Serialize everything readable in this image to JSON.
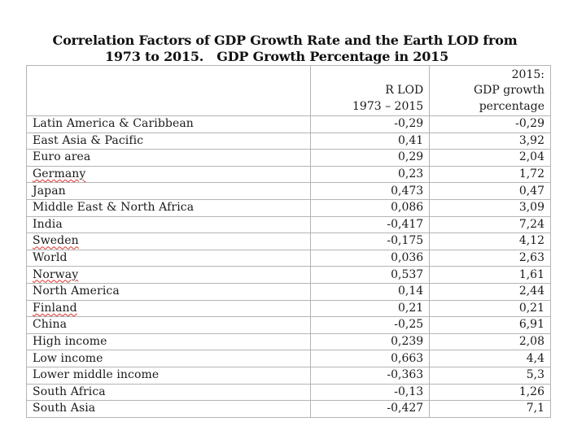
{
  "title": {
    "line1": "Correlation Factors of GDP Growth Rate and the Earth LOD from",
    "line2": "1973 to 2015.   GDP Growth Percentage in 2015"
  },
  "table": {
    "header": {
      "name": "",
      "rlod": [
        "R LOD",
        "1973 – 2015"
      ],
      "gdp": [
        "2015:",
        "GDP growth",
        "percentage"
      ]
    },
    "rows": [
      {
        "name": "Latin America & Caribbean",
        "rlod": "-0,29",
        "gdp": "-0,29",
        "spellcheck": false
      },
      {
        "name": "East Asia & Pacific",
        "rlod": "0,41",
        "gdp": "3,92",
        "spellcheck": false
      },
      {
        "name": "Euro area",
        "rlod": "0,29",
        "gdp": "2,04",
        "spellcheck": false
      },
      {
        "name": "Germany",
        "rlod": "0,23",
        "gdp": "1,72",
        "spellcheck": true
      },
      {
        "name": "Japan",
        "rlod": "0,473",
        "gdp": "0,47",
        "spellcheck": false
      },
      {
        "name": "Middle East & North Africa",
        "rlod": "0,086",
        "gdp": "3,09",
        "spellcheck": false
      },
      {
        "name": "India",
        "rlod": "-0,417",
        "gdp": "7,24",
        "spellcheck": false
      },
      {
        "name": "Sweden",
        "rlod": "-0,175",
        "gdp": "4,12",
        "spellcheck": true
      },
      {
        "name": "World",
        "rlod": "0,036",
        "gdp": "2,63",
        "spellcheck": false
      },
      {
        "name": "Norway",
        "rlod": "0,537",
        "gdp": "1,61",
        "spellcheck": true
      },
      {
        "name": "North America",
        "rlod": "0,14",
        "gdp": "2,44",
        "spellcheck": false
      },
      {
        "name": "Finland",
        "rlod": "0,21",
        "gdp": "0,21",
        "spellcheck": true
      },
      {
        "name": "China",
        "rlod": "-0,25",
        "gdp": "6,91",
        "spellcheck": false
      },
      {
        "name": "High income",
        "rlod": "0,239",
        "gdp": "2,08",
        "spellcheck": false
      },
      {
        "name": "Low income",
        "rlod": "0,663",
        "gdp": "4,4",
        "spellcheck": false
      },
      {
        "name": "Lower middle income",
        "rlod": "-0,363",
        "gdp": "5,3",
        "spellcheck": false
      },
      {
        "name": "South Africa",
        "rlod": "-0,13",
        "gdp": "1,26",
        "spellcheck": false
      },
      {
        "name": "South Asia",
        "rlod": "-0,427",
        "gdp": "7,1",
        "spellcheck": false
      }
    ]
  },
  "colors": {
    "border": "#b4b4b4",
    "text": "#1a1a1a",
    "spellcheck_underline": "#e0302a"
  }
}
